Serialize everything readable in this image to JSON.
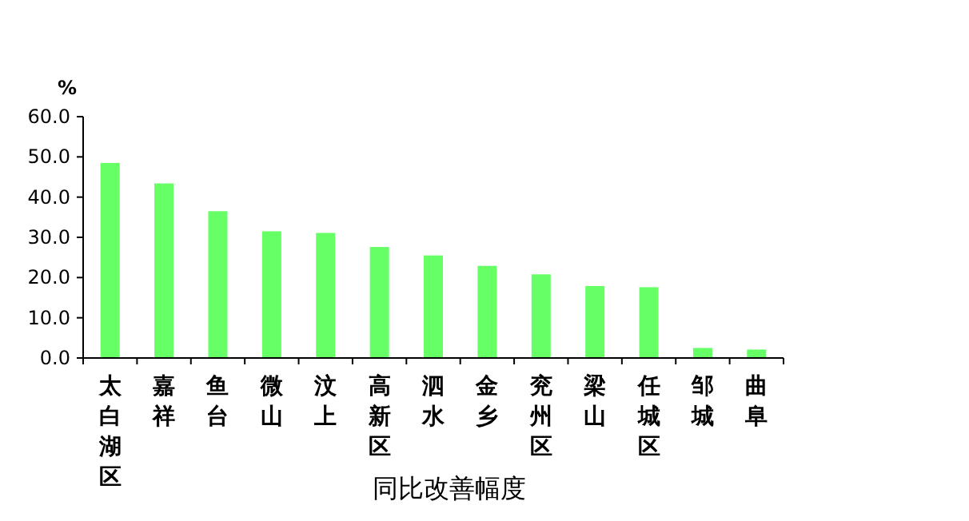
{
  "chart_data": {
    "type": "bar",
    "ylabel": "%",
    "xlabel": "同比改善幅度",
    "categories": [
      "太白湖区",
      "嘉祥",
      "鱼台",
      "微山",
      "汶上",
      "高新区",
      "泗水",
      "金乡",
      "兖州区",
      "梁山",
      "任城区",
      "邹城",
      "曲阜"
    ],
    "values": [
      48.5,
      43.4,
      36.5,
      31.5,
      31.1,
      27.6,
      25.5,
      22.9,
      20.8,
      17.9,
      17.6,
      2.5,
      2.1
    ],
    "color": "#66ff66",
    "ylim": [
      0,
      60
    ],
    "yticks": [
      {
        "value": 0,
        "label": "0.0"
      },
      {
        "value": 10,
        "label": "10.0"
      },
      {
        "value": 20,
        "label": "20.0"
      },
      {
        "value": 30,
        "label": "30.0"
      },
      {
        "value": 40,
        "label": "40.0"
      },
      {
        "value": 50,
        "label": "50.0"
      },
      {
        "value": 60,
        "label": "60.0"
      }
    ],
    "grid": false
  }
}
